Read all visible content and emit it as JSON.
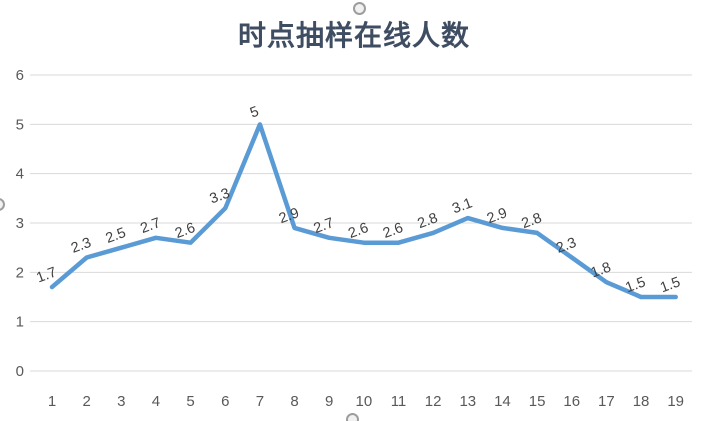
{
  "title": "时点抽样在线人数",
  "colors": {
    "line": "#5B9BD5",
    "title": "#3f4d63",
    "tick_label": "#595959",
    "data_label": "#404040",
    "gridline": "#D9D9D9",
    "handle": "#9d9d9d"
  },
  "handles": {
    "top": "selection-handle",
    "left": "selection-handle",
    "bottom": "selection-handle"
  },
  "chart_data": {
    "type": "line",
    "title": "时点抽样在线人数",
    "x": [
      1,
      2,
      3,
      4,
      5,
      6,
      7,
      8,
      9,
      10,
      11,
      12,
      13,
      14,
      15,
      16,
      17,
      18,
      19
    ],
    "values": [
      1.7,
      2.3,
      2.5,
      2.7,
      2.6,
      3.3,
      5,
      2.9,
      2.7,
      2.6,
      2.6,
      2.8,
      3.1,
      2.9,
      2.8,
      2.3,
      1.8,
      1.5,
      1.5
    ],
    "xlabel": "",
    "ylabel": "",
    "ylim": [
      0,
      6
    ],
    "yticks": [
      0,
      1,
      2,
      3,
      4,
      5,
      6
    ],
    "grid": true,
    "legend": "none",
    "data_labels": true,
    "data_label_rotation_deg": -20
  }
}
